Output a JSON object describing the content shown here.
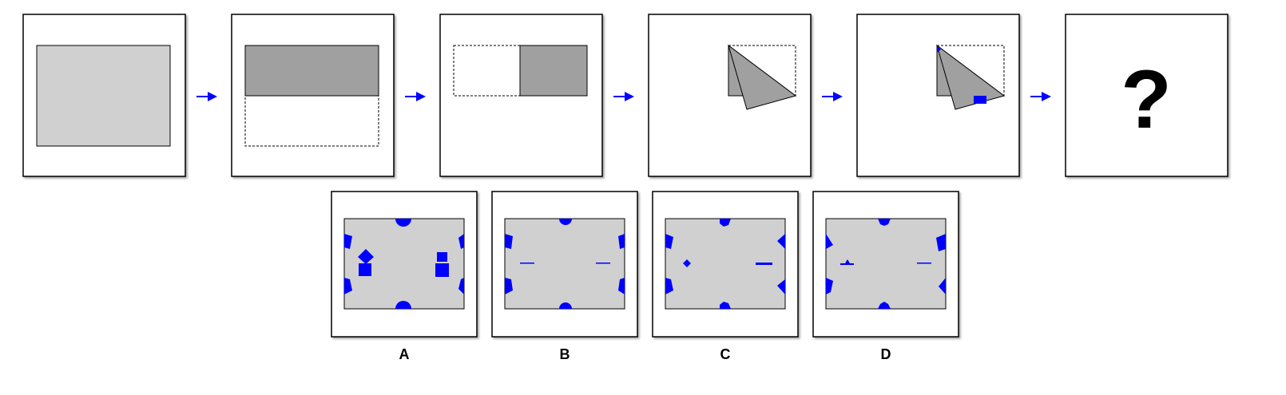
{
  "puzzle": {
    "question_mark": "?",
    "option_labels": [
      "A",
      "B",
      "C",
      "D"
    ]
  },
  "colors": {
    "paper": "#d0d0d0",
    "folded_paper": "#a0a0a0",
    "punch": "#0000ff",
    "arrow": "#0000ff",
    "frame": "#000000"
  },
  "icons": {
    "arrow": "arrow-right-icon",
    "question": "question-mark-icon"
  }
}
